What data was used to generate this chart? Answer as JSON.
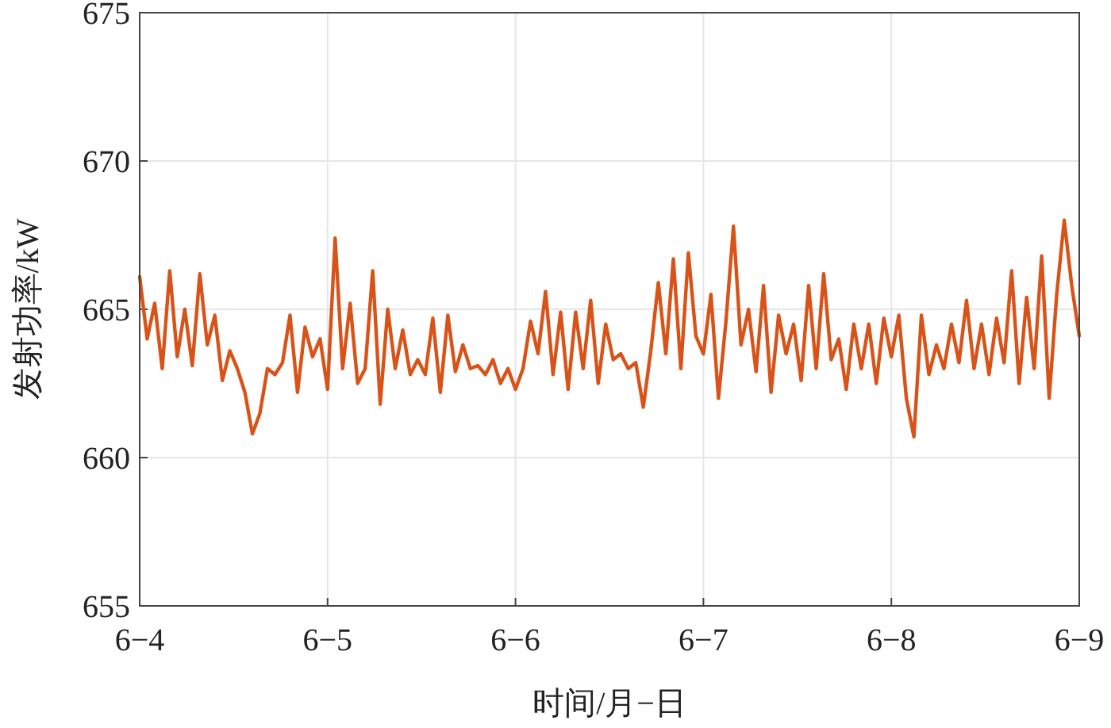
{
  "chart_data": {
    "type": "line",
    "xlabel": "时间/月−日",
    "ylabel": "发射功率/kW",
    "categories": [
      "6−4",
      null,
      null,
      null,
      null,
      null,
      null,
      null,
      null,
      null,
      null,
      null,
      null,
      null,
      null,
      null,
      null,
      null,
      null,
      null,
      null,
      null,
      null,
      null,
      null,
      "6−5",
      null,
      null,
      null,
      null,
      null,
      null,
      null,
      null,
      null,
      null,
      null,
      null,
      null,
      null,
      null,
      null,
      null,
      null,
      null,
      null,
      null,
      null,
      null,
      null,
      "6−6",
      null,
      null,
      null,
      null,
      null,
      null,
      null,
      null,
      null,
      null,
      null,
      null,
      null,
      null,
      null,
      null,
      null,
      null,
      null,
      null,
      null,
      null,
      null,
      null,
      "6−7",
      null,
      null,
      null,
      null,
      null,
      null,
      null,
      null,
      null,
      null,
      null,
      null,
      null,
      null,
      null,
      null,
      null,
      null,
      null,
      null,
      null,
      null,
      null,
      null,
      "6−8",
      null,
      null,
      null,
      null,
      null,
      null,
      null,
      null,
      null,
      null,
      null,
      null,
      null,
      null,
      null,
      null,
      null,
      null,
      null,
      null,
      null,
      null,
      null,
      null,
      "6−9"
    ],
    "series": [
      {
        "color": "#d95319",
        "values": [
          666.1,
          664.0,
          665.2,
          663.0,
          666.3,
          663.4,
          665.0,
          663.1,
          666.2,
          663.8,
          664.8,
          662.6,
          663.6,
          663.0,
          662.2,
          660.8,
          661.5,
          663.0,
          662.8,
          663.2,
          664.8,
          662.2,
          664.4,
          663.4,
          664.0,
          662.3,
          667.4,
          663.0,
          665.2,
          662.5,
          663.0,
          666.3,
          661.8,
          665.0,
          663.0,
          664.3,
          662.8,
          663.3,
          662.8,
          664.7,
          662.2,
          664.8,
          662.9,
          663.8,
          663.0,
          663.1,
          662.8,
          663.3,
          662.5,
          663.0,
          662.3,
          663.0,
          664.6,
          663.5,
          665.6,
          662.8,
          664.9,
          662.3,
          664.9,
          663.0,
          665.3,
          662.5,
          664.5,
          663.3,
          663.5,
          663.0,
          663.2,
          661.7,
          663.6,
          665.9,
          663.5,
          666.7,
          663.0,
          666.9,
          664.1,
          663.5,
          665.5,
          662.0,
          664.6,
          667.8,
          663.8,
          665.0,
          662.9,
          665.8,
          662.2,
          664.8,
          663.5,
          664.5,
          662.6,
          665.8,
          663.0,
          666.2,
          663.3,
          664.0,
          662.3,
          664.5,
          663.0,
          664.5,
          662.5,
          664.7,
          663.4,
          664.8,
          662.0,
          660.7,
          664.8,
          662.8,
          663.8,
          663.0,
          664.5,
          663.2,
          665.3,
          663.0,
          664.5,
          662.8,
          664.7,
          663.2,
          666.3,
          662.5,
          665.4,
          663.0,
          666.8,
          662.0,
          665.5,
          668.0,
          665.8,
          664.1
        ]
      }
    ],
    "ylim": [
      655,
      675
    ],
    "yticks": [
      655,
      660,
      665,
      670,
      675
    ],
    "grid": true,
    "line_style": "solid"
  }
}
